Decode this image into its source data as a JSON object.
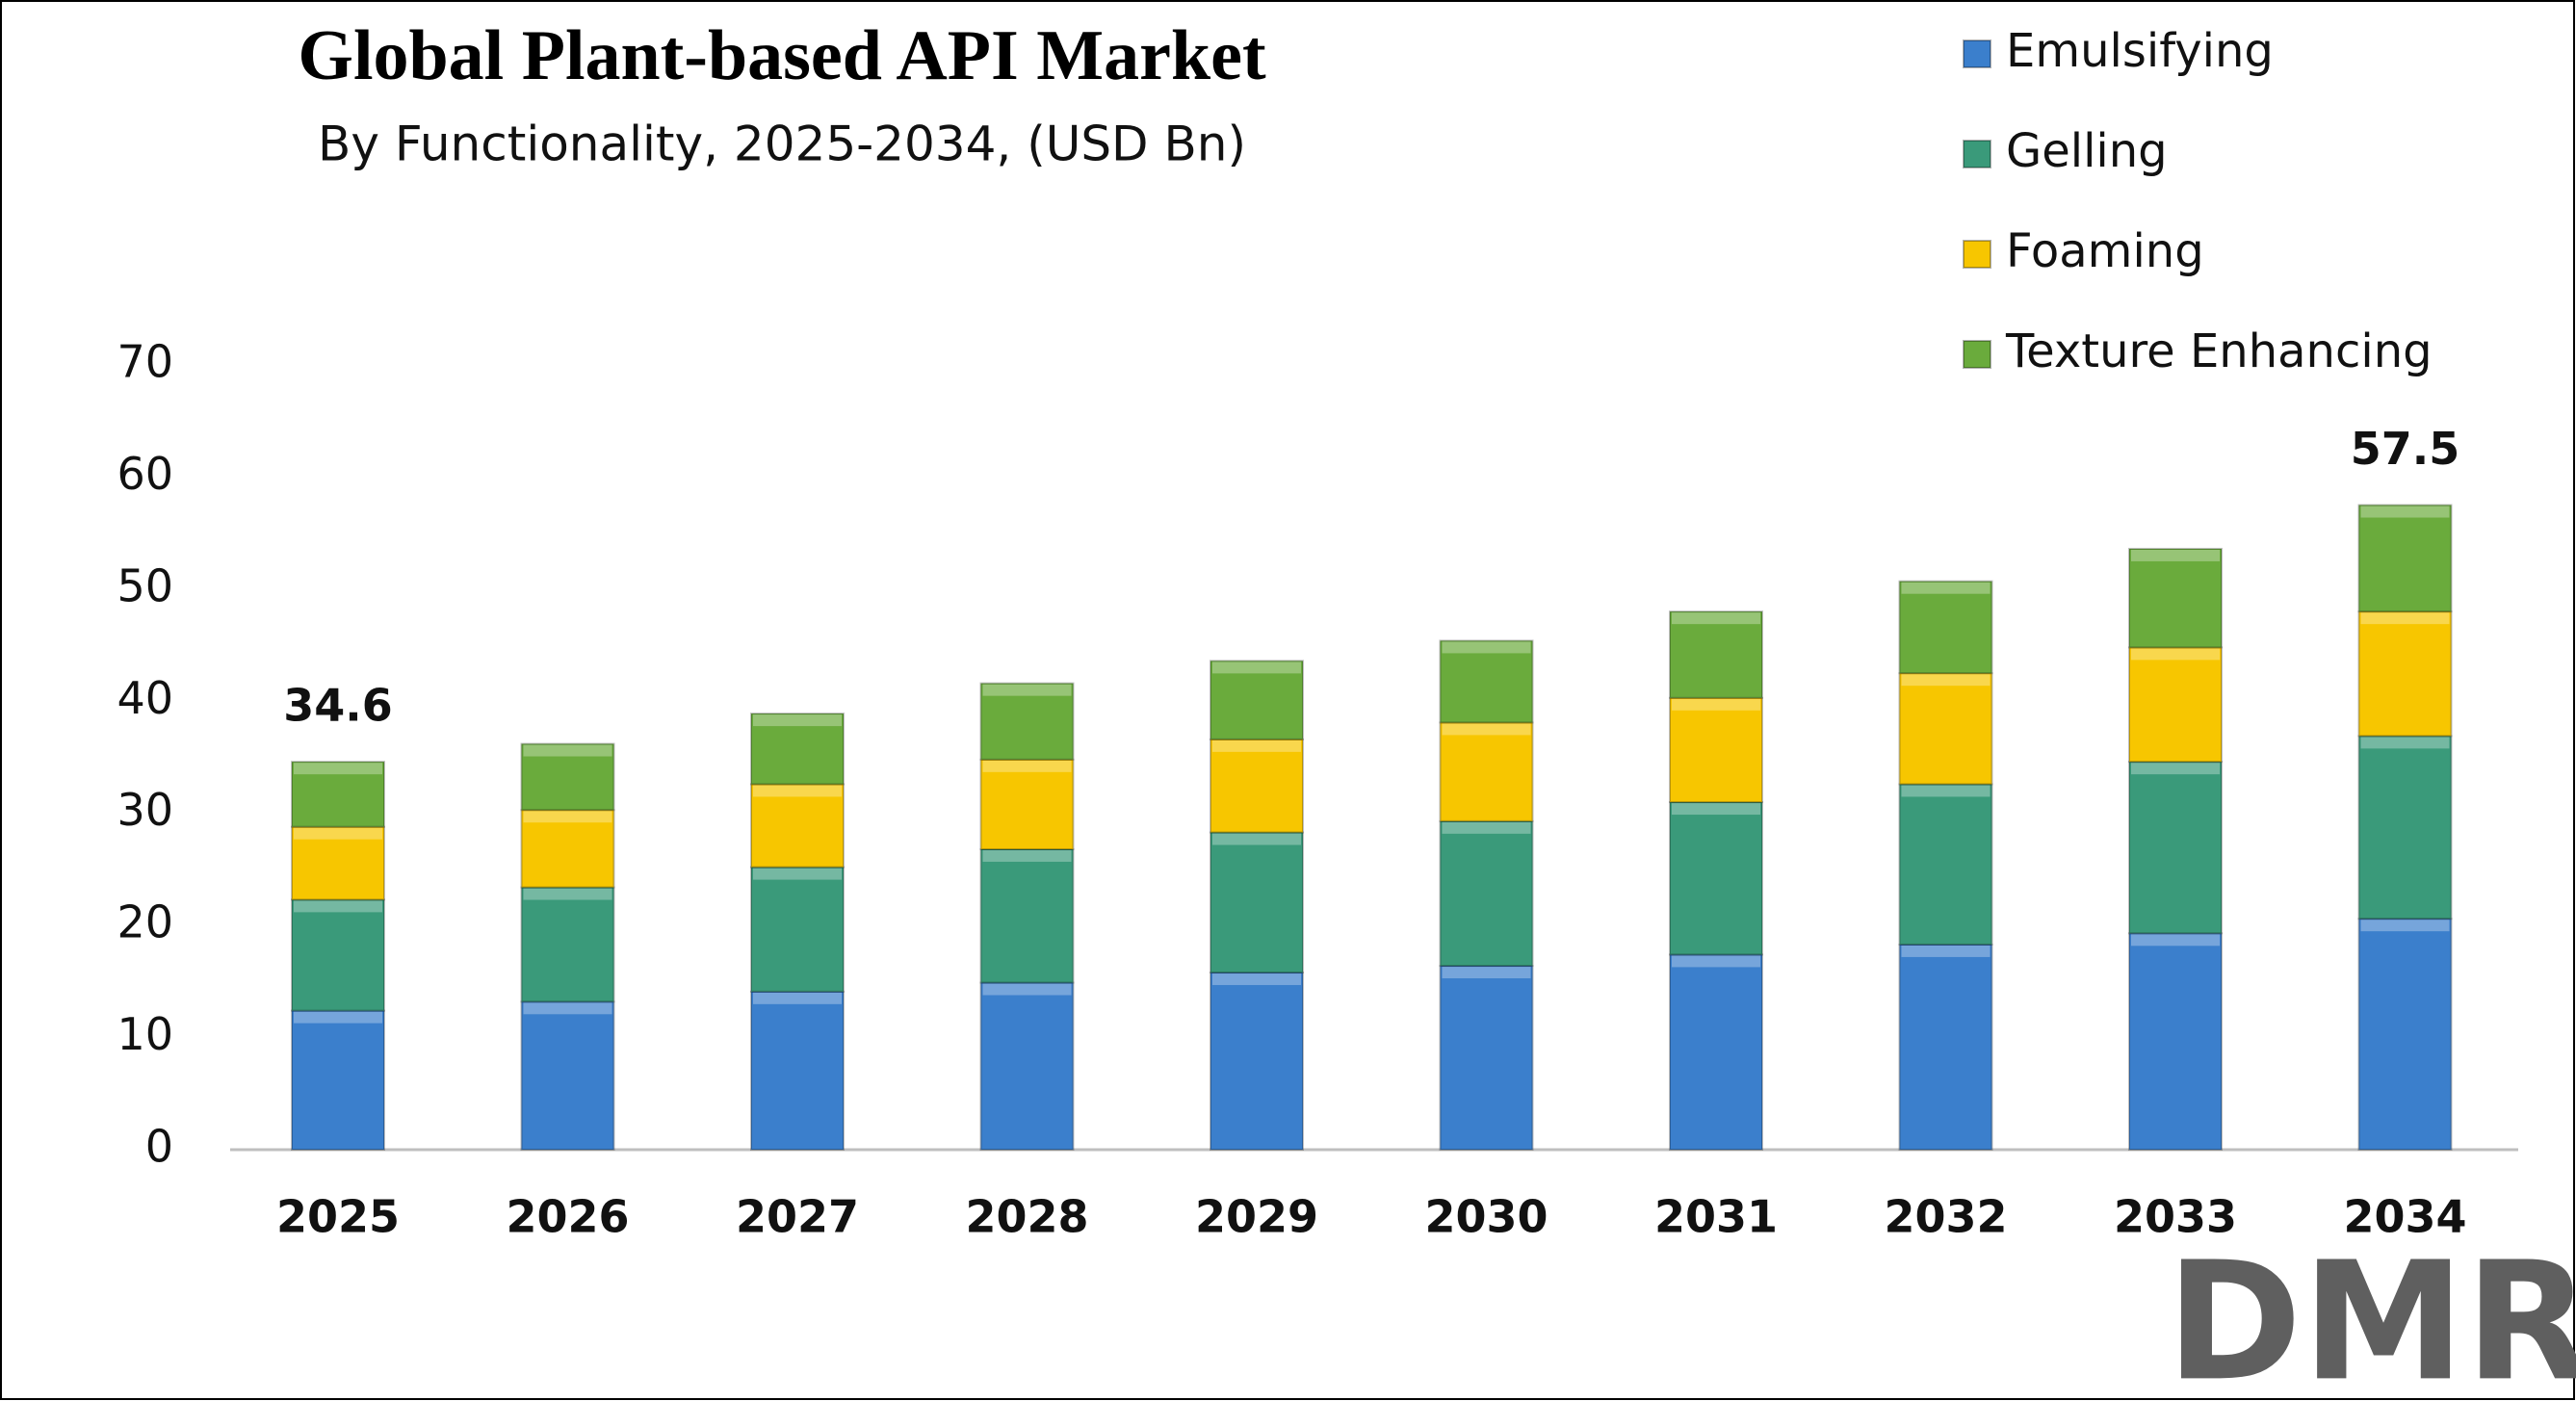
{
  "chart_data": {
    "type": "stacked_bar",
    "title": "Global Plant-based API Market",
    "subtitle": "By Functionality, 2025-2034, (USD Bn)",
    "categories": [
      "2025",
      "2026",
      "2027",
      "2028",
      "2029",
      "2030",
      "2031",
      "2032",
      "2033",
      "2034"
    ],
    "series": [
      {
        "name": "Emulsifying",
        "color": "#3b7fcc",
        "values": [
          12.4,
          13.2,
          14.1,
          14.9,
          15.8,
          16.4,
          17.4,
          18.3,
          19.3,
          20.6
        ]
      },
      {
        "name": "Gelling",
        "color": "#3a9a7a",
        "values": [
          9.9,
          10.2,
          11.1,
          11.9,
          12.5,
          12.9,
          13.6,
          14.3,
          15.3,
          16.3
        ]
      },
      {
        "name": "Foaming",
        "color": "#f7c600",
        "values": [
          6.5,
          6.9,
          7.4,
          8.0,
          8.3,
          8.8,
          9.3,
          9.9,
          10.2,
          11.1
        ]
      },
      {
        "name": "Texture Enhancing",
        "color": "#6aab3c",
        "values": [
          5.8,
          5.9,
          6.3,
          6.8,
          7.0,
          7.3,
          7.7,
          8.2,
          8.8,
          9.5
        ]
      }
    ],
    "totals": [
      34.6,
      null,
      null,
      null,
      null,
      null,
      null,
      null,
      null,
      57.5
    ],
    "ylim": [
      0,
      70
    ],
    "yticks": [
      0,
      10,
      20,
      30,
      40,
      50,
      60,
      70
    ],
    "grid": false,
    "legend": "top-right",
    "logo": "DMR"
  }
}
